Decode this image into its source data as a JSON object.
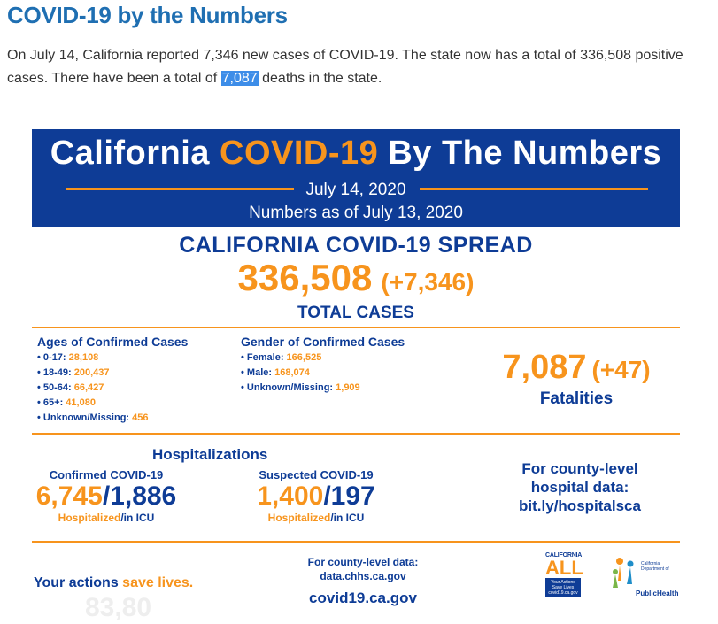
{
  "page": {
    "title": "COVID-19 by the Numbers",
    "intro_before": "On July 14, California reported 7,346 new cases of COVID-19. The state now has a total of 336,508 positive cases. There have been a total of ",
    "intro_highlight": "7,087",
    "intro_after": " deaths in the state."
  },
  "banner": {
    "title_part1": "California ",
    "title_part2": "COVID-19",
    "title_part3": " By The Numbers",
    "date": "July 14, 2020",
    "numbers_as_of": "Numbers as of July 13, 2020"
  },
  "spread": {
    "title": "CALIFORNIA COVID-19 SPREAD",
    "total": "336,508",
    "delta": "(+7,346)",
    "label": "TOTAL CASES"
  },
  "ages": {
    "heading": "Ages of Confirmed Cases",
    "items": [
      {
        "label": "• 0-17: ",
        "value": "28,108"
      },
      {
        "label": "• 18-49: ",
        "value": "200,437"
      },
      {
        "label": "• 50-64: ",
        "value": "66,427"
      },
      {
        "label": "• 65+: ",
        "value": "41,080"
      },
      {
        "label": "• Unknown/Missing: ",
        "value": "456"
      }
    ]
  },
  "gender": {
    "heading": "Gender of Confirmed Cases",
    "items": [
      {
        "label": "• Female: ",
        "value": "166,525"
      },
      {
        "label": "• Male: ",
        "value": "168,074"
      },
      {
        "label": "• Unknown/Missing: ",
        "value": "1,909"
      }
    ]
  },
  "fatalities": {
    "number": "7,087",
    "delta": "(+47)",
    "label": "Fatalities"
  },
  "hospitalizations": {
    "title": "Hospitalizations",
    "confirmed": {
      "caption": "Confirmed COVID-19",
      "hospitalized": "6,745",
      "sep": "/",
      "icu": "1,886",
      "sub_hosp": "Hospitalized",
      "sub_icu": "/in ICU"
    },
    "suspected": {
      "caption": "Suspected COVID-19",
      "hospitalized": "1,400",
      "sep": "/",
      "icu": "197",
      "sub_hosp": "Hospitalized",
      "sub_icu": "/in ICU"
    }
  },
  "county": {
    "line1": "For county-level",
    "line2": "hospital data:",
    "line3": "bit.ly/hospitalsca"
  },
  "footer": {
    "actions_part1": "Your actions ",
    "actions_part2": "save lives.",
    "ghost_text": "83,80",
    "data_line1": "For county-level data:",
    "data_line2": "data.chhs.ca.gov",
    "url": "covid19.ca.gov",
    "ca_logo_top": "CALIFORNIA",
    "ca_logo_all": "ALL",
    "ca_logo_box": "Your Actions Save Lives covid19.ca.gov",
    "cdph_dept": "California Department of",
    "cdph_name": "PublicHealth"
  },
  "colors": {
    "brand_blue": "#0e3c96",
    "brand_orange": "#f7941d",
    "title_blue": "#1f6fb2",
    "highlight": "#3d8de8"
  }
}
